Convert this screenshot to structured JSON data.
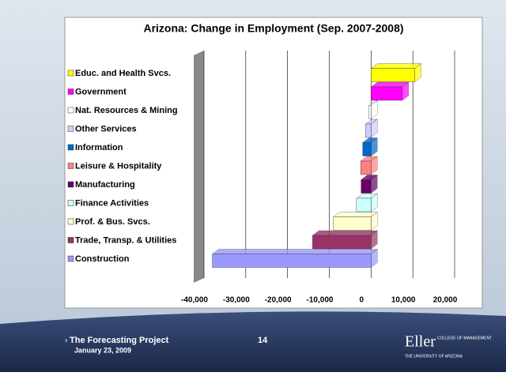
{
  "chart_data": {
    "type": "bar",
    "orientation": "horizontal",
    "title": "Arizona: Change in Employment (Sep. 2007-2008)",
    "categories": [
      "Educ. and Health Svcs.",
      "Government",
      "Nat. Resources & Mining",
      "Other Services",
      "Information",
      "Leisure & Hospitality",
      "Manufacturing",
      "Finance Activities",
      "Prof. & Bus. Svcs.",
      "Trade, Transp. & Utilities",
      "Construction"
    ],
    "values": [
      10500,
      7500,
      -500,
      -1300,
      -2000,
      -2500,
      -2400,
      -3500,
      -9000,
      -14000,
      -38000
    ],
    "colors": [
      "#ffff00",
      "#ff00ff",
      "#ffffff",
      "#ccccff",
      "#0066cc",
      "#ff8080",
      "#660066",
      "#ccffff",
      "#ffffcc",
      "#993366",
      "#9999ff"
    ],
    "xlim": [
      -40000,
      20000
    ],
    "xticks": [
      {
        "value": -40000,
        "label": "-40,000"
      },
      {
        "value": -30000,
        "label": "-30,000"
      },
      {
        "value": -20000,
        "label": "-20,000"
      },
      {
        "value": -10000,
        "label": "-10,000"
      },
      0,
      {
        "value": 10000,
        "label": "10,000"
      },
      {
        "value": 20000,
        "label": "20,000"
      }
    ],
    "grid": true
  },
  "footer": {
    "project": "The Forecasting Project",
    "date": "January 23, 2009",
    "page": "14",
    "logo": "Eller",
    "logo_sub1": "COLLEGE OF MANAGEMENT",
    "logo_sub2": "THE UNIVERSITY OF ARIZONA"
  }
}
